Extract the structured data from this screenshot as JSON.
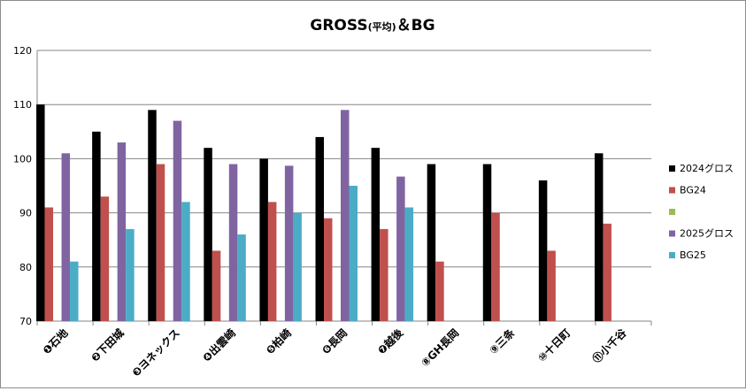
{
  "chart_data": {
    "type": "bar",
    "title": "GROSS",
    "title_suffix": "(平均)",
    "title_tail": "＆BG",
    "xlabel": "",
    "ylabel": "",
    "ylim": [
      70,
      120
    ],
    "yticks": [
      70,
      80,
      90,
      100,
      110,
      120
    ],
    "grid": "horizontal",
    "legend_position": "right",
    "categories": [
      "❶石地",
      "❷下田城",
      "❸ヨネックス",
      "❹出雲崎",
      "❺柏崎",
      "❻長岡",
      "❼越後",
      "⑧GH長岡",
      "⑨三条",
      "⑩十日町",
      "⑪小千谷"
    ],
    "series": [
      {
        "name": "2024グロス",
        "color": "#000000",
        "values": [
          110,
          105,
          109,
          102,
          100,
          104,
          102,
          99,
          99,
          96,
          101
        ]
      },
      {
        "name": "BG24",
        "color": "#c0504d",
        "values": [
          91,
          93,
          99,
          83,
          92,
          89,
          87,
          81,
          90,
          83,
          88
        ]
      },
      {
        "name": "",
        "color": "#9bbb59",
        "values": [
          null,
          null,
          null,
          null,
          null,
          null,
          null,
          null,
          null,
          null,
          null
        ]
      },
      {
        "name": "2025グロス",
        "color": "#8064a2",
        "values": [
          101,
          103,
          107,
          99,
          98.7,
          109,
          96.7,
          null,
          null,
          null,
          null
        ]
      },
      {
        "name": "BG25",
        "color": "#4bacc6",
        "values": [
          81,
          87,
          92,
          86,
          90,
          95,
          91,
          null,
          null,
          null,
          null
        ]
      }
    ]
  }
}
